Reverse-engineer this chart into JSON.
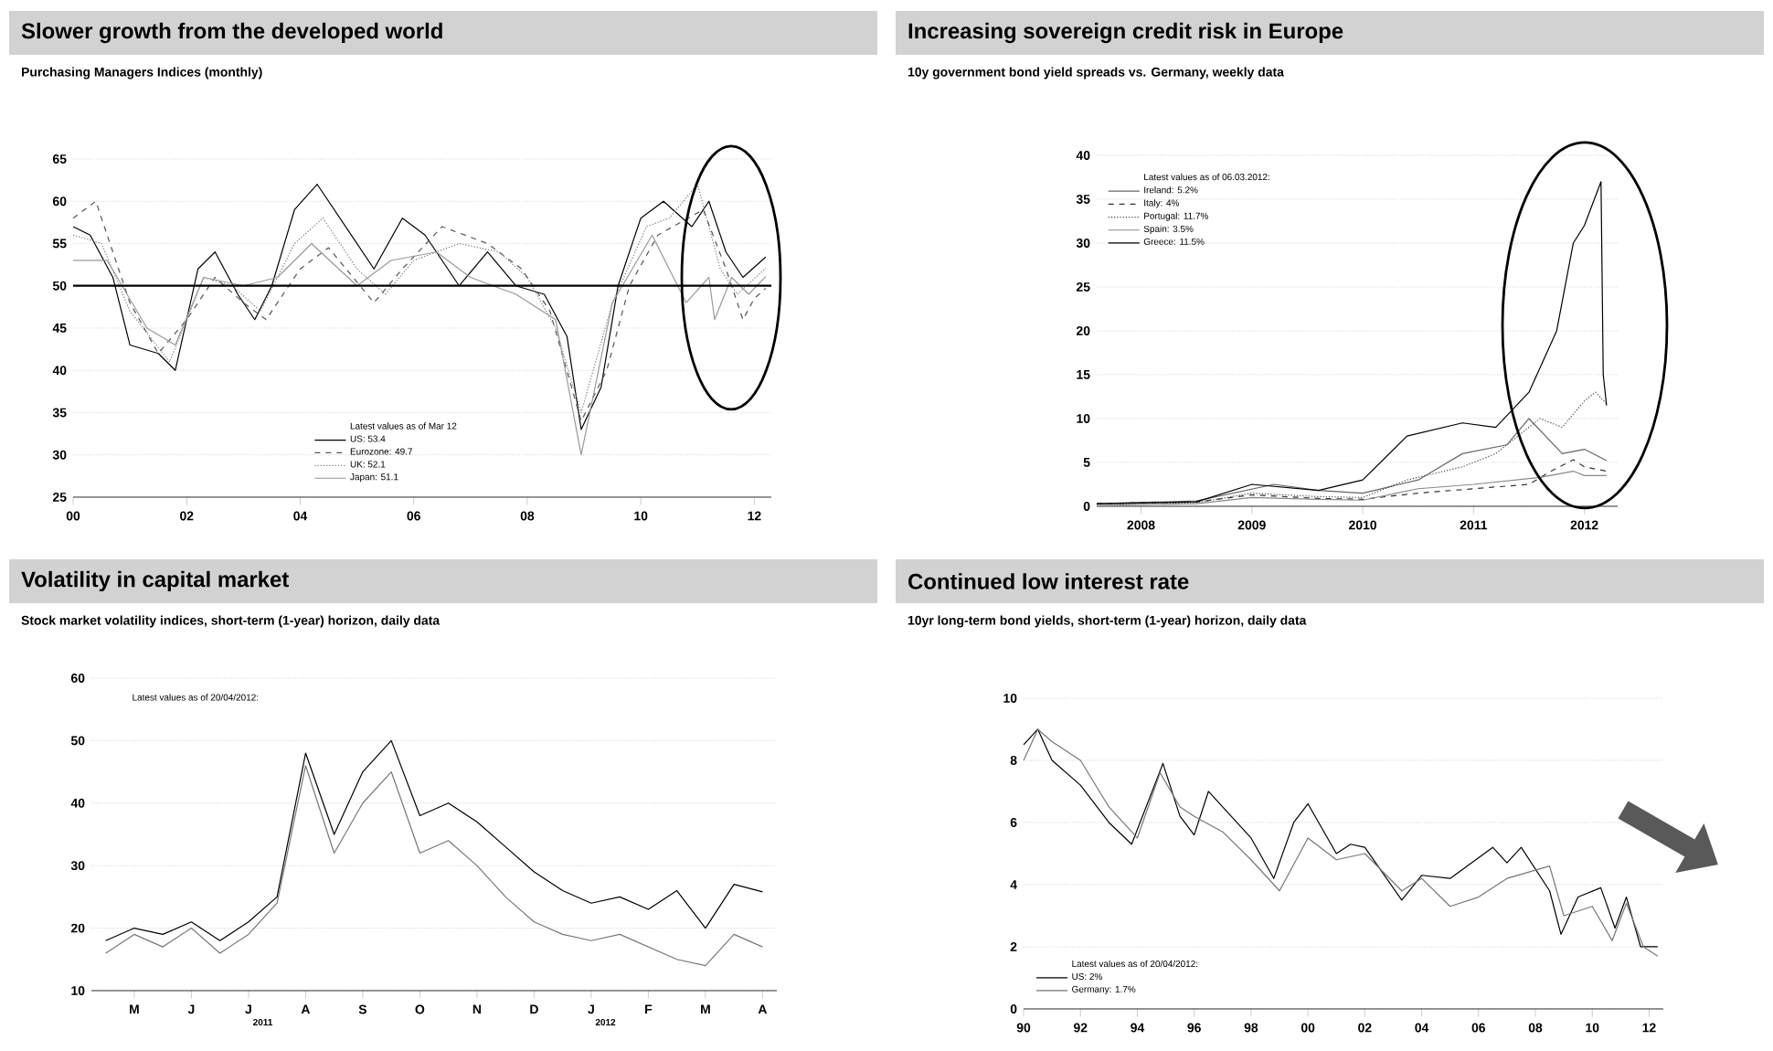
{
  "chart_data": [
    {
      "type": "line",
      "title": "Slower growth from the developed world",
      "subtitle": "Purchasing Managers Indices (monthly)",
      "legend_title": "Latest values as of Mar 12",
      "legend": "bottom",
      "grid": "y",
      "xlim": [
        2000,
        2012.3
      ],
      "xticks": [
        {
          "value": 2000,
          "label": "00"
        },
        {
          "value": 2002,
          "label": "02"
        },
        {
          "value": 2004,
          "label": "04"
        },
        {
          "value": 2006,
          "label": "06"
        },
        {
          "value": 2008,
          "label": "08"
        },
        {
          "value": 2010,
          "label": "10"
        },
        {
          "value": 2012,
          "label": "12"
        }
      ],
      "ylim": [
        25,
        65
      ],
      "yticks": [
        25,
        30,
        35,
        40,
        45,
        50,
        55,
        60,
        65
      ],
      "ref_lines": [
        {
          "axis": "y",
          "value": 50,
          "color": "#000000"
        }
      ],
      "series": [
        {
          "name": "US: 53.4",
          "color": "#000000",
          "line_style": "solid",
          "x": [
            2000,
            2000.3,
            2000.7,
            2001.0,
            2001.5,
            2001.8,
            2002.2,
            2002.5,
            2002.9,
            2003.2,
            2003.5,
            2003.9,
            2004.3,
            2004.8,
            2005.3,
            2005.8,
            2006.2,
            2006.8,
            2007.3,
            2007.8,
            2008.3,
            2008.7,
            2008.95,
            2009.3,
            2009.6,
            2010.0,
            2010.4,
            2010.9,
            2011.2,
            2011.5,
            2011.8,
            2012.2
          ],
          "values": [
            57,
            56,
            51,
            43,
            42,
            40,
            52,
            54,
            49,
            46,
            50,
            59,
            62,
            57,
            52,
            58,
            56,
            50,
            54,
            50,
            49,
            44,
            33,
            38,
            50,
            58,
            60,
            57,
            60,
            54,
            51,
            53.4
          ]
        },
        {
          "name": "Eurozone: 49.7",
          "color": "#555555",
          "line_style": "dashed",
          "x": [
            2000,
            2000.4,
            2001,
            2001.5,
            2002,
            2002.5,
            2003,
            2003.4,
            2004,
            2004.5,
            2005.3,
            2005.8,
            2006.5,
            2007.3,
            2007.9,
            2008.4,
            2008.95,
            2009.4,
            2009.8,
            2010.3,
            2011.1,
            2011.5,
            2011.8,
            2012.0,
            2012.2
          ],
          "values": [
            58,
            60,
            48,
            42,
            46,
            51,
            48,
            46,
            52,
            54.5,
            48,
            52,
            57,
            55,
            52,
            47,
            34,
            40,
            50,
            56,
            59,
            52,
            46,
            48.5,
            49.7
          ]
        },
        {
          "name": "UK: 52.1",
          "color": "#777777",
          "line_style": "dotted",
          "x": [
            2000,
            2000.5,
            2001,
            2001.7,
            2002.3,
            2002.8,
            2003.3,
            2003.9,
            2004.4,
            2005,
            2005.5,
            2006,
            2006.8,
            2007.5,
            2008,
            2008.5,
            2008.95,
            2009.5,
            2010.1,
            2010.5,
            2011.0,
            2011.4,
            2011.7,
            2012.2
          ],
          "values": [
            56,
            55,
            47,
            41,
            51,
            50,
            47,
            55,
            58,
            52,
            49,
            53,
            55,
            54,
            51,
            45,
            35,
            48,
            57,
            58,
            62,
            52,
            49,
            52.1
          ]
        },
        {
          "name": "Japan: 51.1",
          "color": "#999999",
          "line_style": "solid",
          "x": [
            2000,
            2000.6,
            2001.3,
            2001.8,
            2002.3,
            2003,
            2003.6,
            2004.2,
            2005,
            2005.6,
            2006.4,
            2007,
            2007.8,
            2008.5,
            2008.95,
            2009.5,
            2010.2,
            2010.8,
            2011.2,
            2011.3,
            2011.6,
            2011.9,
            2012.2
          ],
          "values": [
            53,
            53,
            45,
            43,
            51,
            50,
            51,
            55,
            50,
            53,
            54,
            51,
            49,
            46,
            30,
            48,
            56,
            48,
            51,
            46,
            51,
            49,
            51.1
          ]
        }
      ]
    },
    {
      "type": "line",
      "title": "Increasing sovereign credit risk in Europe",
      "subtitle": "10y government bond yield spreads vs. Germany, weekly data",
      "legend_title": "Latest values as of 06.03.2012:",
      "legend": "top left",
      "grid": "y",
      "xlim": [
        2007.6,
        2012.3
      ],
      "xticks": [
        2008,
        2009,
        2010,
        2011,
        2012
      ],
      "ylim": [
        0,
        40
      ],
      "yticks": [
        0,
        5,
        10,
        15,
        20,
        25,
        30,
        35,
        40
      ],
      "series": [
        {
          "name": "Ireland: 5.2%",
          "color": "#666666",
          "line_style": "solid",
          "x": [
            2007.6,
            2008.5,
            2009.2,
            2009.6,
            2010.0,
            2010.5,
            2010.9,
            2011.3,
            2011.5,
            2011.8,
            2012.0,
            2012.2
          ],
          "values": [
            0.3,
            0.6,
            2.5,
            1.8,
            1.5,
            3,
            6,
            7,
            10,
            6,
            6.5,
            5.2
          ]
        },
        {
          "name": "Italy: 4%",
          "color": "#333333",
          "line_style": "dashed",
          "x": [
            2007.6,
            2008.5,
            2009.0,
            2009.6,
            2010.0,
            2010.5,
            2011.0,
            2011.5,
            2011.7,
            2011.9,
            2012.0,
            2012.2
          ],
          "values": [
            0.3,
            0.5,
            1.3,
            0.9,
            0.8,
            1.5,
            2,
            2.5,
            4,
            5.3,
            4.5,
            4
          ]
        },
        {
          "name": "Portugal: 11.7%",
          "color": "#444444",
          "line_style": "dotted",
          "x": [
            2007.6,
            2008.5,
            2009.0,
            2009.6,
            2010.0,
            2010.4,
            2010.9,
            2011.2,
            2011.6,
            2011.8,
            2012.0,
            2012.1,
            2012.2
          ],
          "values": [
            0.2,
            0.4,
            1.5,
            1.1,
            1,
            3,
            4.5,
            6,
            10,
            9,
            12,
            13,
            11.7
          ]
        },
        {
          "name": "Spain: 3.5%",
          "color": "#888888",
          "line_style": "solid",
          "x": [
            2007.6,
            2008.5,
            2009.0,
            2009.6,
            2010.0,
            2010.5,
            2011.0,
            2011.6,
            2011.9,
            2012.0,
            2012.2
          ],
          "values": [
            0.1,
            0.3,
            1,
            0.8,
            0.7,
            2,
            2.5,
            3.3,
            4,
            3.5,
            3.5
          ]
        },
        {
          "name": "Greece: 11.5%",
          "color": "#000000",
          "line_style": "solid",
          "x": [
            2007.6,
            2008.5,
            2009.0,
            2009.6,
            2010.0,
            2010.4,
            2010.9,
            2011.2,
            2011.5,
            2011.75,
            2011.9,
            2012.0,
            2012.15,
            2012.17,
            2012.2
          ],
          "values": [
            0.3,
            0.5,
            2.5,
            1.8,
            3,
            8,
            9.5,
            9,
            13,
            20,
            30,
            32,
            37,
            15,
            11.5
          ]
        }
      ]
    },
    {
      "type": "line",
      "title": "Volatility in capital market",
      "subtitle": "Stock market volatility indices, short-term (1-year) horizon, daily data",
      "annotations": [
        "Latest values as of 20/04/2012:",
        "2011",
        "2012"
      ],
      "grid": "y",
      "categories": [
        null,
        "M",
        null,
        "J",
        null,
        "J",
        null,
        "A",
        null,
        "S",
        null,
        "O",
        null,
        "N",
        null,
        "D",
        null,
        "J",
        null,
        "F",
        null,
        "M",
        null,
        "A"
      ],
      "ylim": [
        10,
        60
      ],
      "yticks": [
        10,
        20,
        30,
        40,
        50,
        60
      ],
      "series": [
        {
          "color": "#000000",
          "line_style": "solid",
          "values": [
            18,
            20,
            19,
            21,
            18,
            21,
            25,
            48,
            35,
            45,
            50,
            38,
            40,
            37,
            33,
            29,
            26,
            24,
            25,
            23,
            26,
            20,
            27,
            25.8
          ]
        },
        {
          "color": "#777777",
          "line_style": "solid",
          "values": [
            16,
            19,
            17,
            20,
            16,
            19,
            24,
            46,
            32,
            40,
            45,
            32,
            34,
            30,
            25,
            21,
            19,
            18,
            19,
            17,
            15,
            14,
            19,
            17
          ]
        }
      ]
    },
    {
      "type": "line",
      "title": "Continued low interest rate",
      "subtitle": "10yr long-term bond yields, short-term (1-year) horizon, daily data",
      "legend_title": "Latest values as of 20/04/2012:",
      "legend": "bottom left",
      "grid": "y",
      "xlim": [
        1990,
        2012.5
      ],
      "xticks": [
        {
          "value": 1990,
          "label": "90"
        },
        {
          "value": 1992,
          "label": "92"
        },
        {
          "value": 1994,
          "label": "94"
        },
        {
          "value": 1996,
          "label": "96"
        },
        {
          "value": 1998,
          "label": "98"
        },
        {
          "value": 2000,
          "label": "00"
        },
        {
          "value": 2002,
          "label": "02"
        },
        {
          "value": 2004,
          "label": "04"
        },
        {
          "value": 2006,
          "label": "06"
        },
        {
          "value": 2008,
          "label": "08"
        },
        {
          "value": 2010,
          "label": "10"
        },
        {
          "value": 2012,
          "label": "12"
        }
      ],
      "ylim": [
        0,
        10
      ],
      "yticks": [
        0,
        2,
        4,
        6,
        8,
        10
      ],
      "series": [
        {
          "name": "US: 2%",
          "color": "#000000",
          "line_style": "solid",
          "x": [
            1990,
            1990.5,
            1991,
            1992,
            1993,
            1993.8,
            1994.9,
            1995.5,
            1996,
            1996.5,
            1997,
            1998,
            1998.8,
            1999.5,
            2000,
            2001,
            2001.5,
            2002,
            2003.3,
            2004,
            2005,
            2006.5,
            2007,
            2007.5,
            2008.5,
            2008.9,
            2009.5,
            2010.3,
            2010.8,
            2011.2,
            2011.7,
            2012.3
          ],
          "values": [
            8.5,
            9,
            8,
            7.2,
            6,
            5.3,
            7.9,
            6.2,
            5.6,
            7,
            6.5,
            5.5,
            4.2,
            6,
            6.6,
            5,
            5.3,
            5.2,
            3.5,
            4.3,
            4.2,
            5.2,
            4.7,
            5.2,
            3.8,
            2.4,
            3.6,
            3.9,
            2.6,
            3.6,
            2,
            2
          ]
        },
        {
          "name": "Germany: 1.7%",
          "color": "#777777",
          "line_style": "solid",
          "x": [
            1990,
            1990.5,
            1991,
            1992,
            1993,
            1994,
            1994.8,
            1995.5,
            1996,
            1997,
            1998,
            1999,
            2000,
            2001,
            2002,
            2003.3,
            2004,
            2005,
            2006,
            2007,
            2008.5,
            2009,
            2010,
            2010.7,
            2011.2,
            2011.8,
            2012.3
          ],
          "values": [
            8,
            9,
            8.6,
            8,
            6.5,
            5.5,
            7.6,
            6.5,
            6.2,
            5.7,
            4.8,
            3.8,
            5.5,
            4.8,
            5,
            3.8,
            4.2,
            3.3,
            3.6,
            4.2,
            4.6,
            3,
            3.3,
            2.2,
            3.4,
            2,
            1.7
          ]
        }
      ]
    }
  ]
}
